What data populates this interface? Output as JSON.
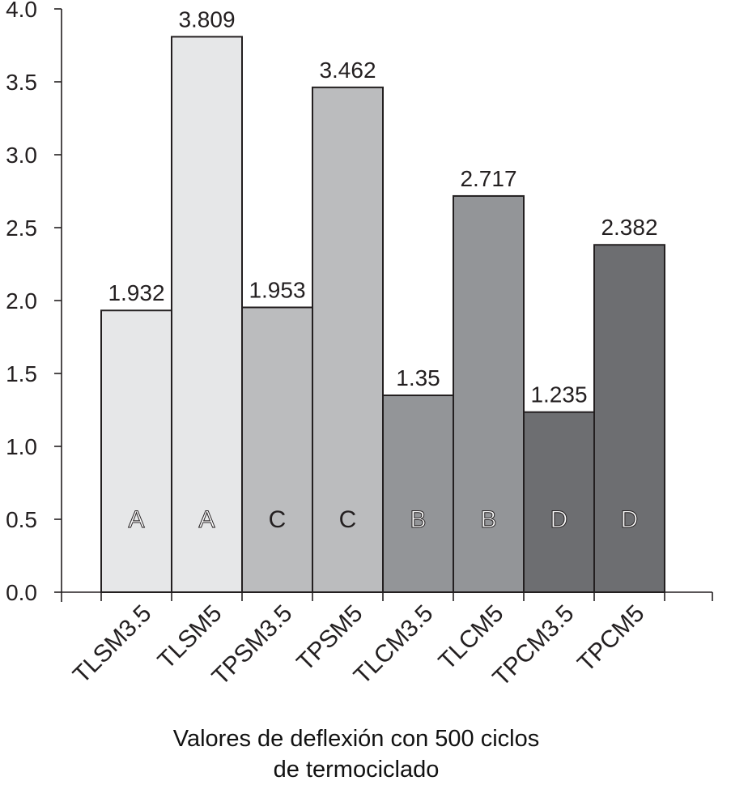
{
  "chart_data": {
    "type": "bar",
    "categories": [
      "TLSM3.5",
      "TLSM5",
      "TPSM3.5",
      "TPSM5",
      "TLCM3.5",
      "TLCM5",
      "TPCM3.5",
      "TPCM5"
    ],
    "values": [
      1.932,
      3.809,
      1.953,
      3.462,
      1.35,
      2.717,
      1.235,
      2.382
    ],
    "value_labels": [
      "1.932",
      "3.809",
      "1.953",
      "3.462",
      "1.35",
      "2.717",
      "1.235",
      "2.382"
    ],
    "group_letters": [
      "A",
      "A",
      "C",
      "C",
      "B",
      "B",
      "D",
      "D"
    ],
    "bar_colors": [
      "#e6e7e8",
      "#e6e7e8",
      "#bbbcbe",
      "#bbbcbe",
      "#939598",
      "#939598",
      "#6d6e71",
      "#6d6e71"
    ],
    "letter_colors": [
      "#ffffff",
      "#ffffff",
      "#231f20",
      "#231f20",
      "#ffffff",
      "#ffffff",
      "#ffffff",
      "#ffffff"
    ],
    "yticks": [
      "0.0",
      "0.5",
      "1.0",
      "1.5",
      "2.0",
      "2.5",
      "3.0",
      "3.5",
      "4.0"
    ],
    "ylim": [
      0,
      4
    ],
    "xlabel_lines": [
      "Valores de deflexión con 500 ciclos",
      "de termociclado"
    ],
    "grid": false
  }
}
